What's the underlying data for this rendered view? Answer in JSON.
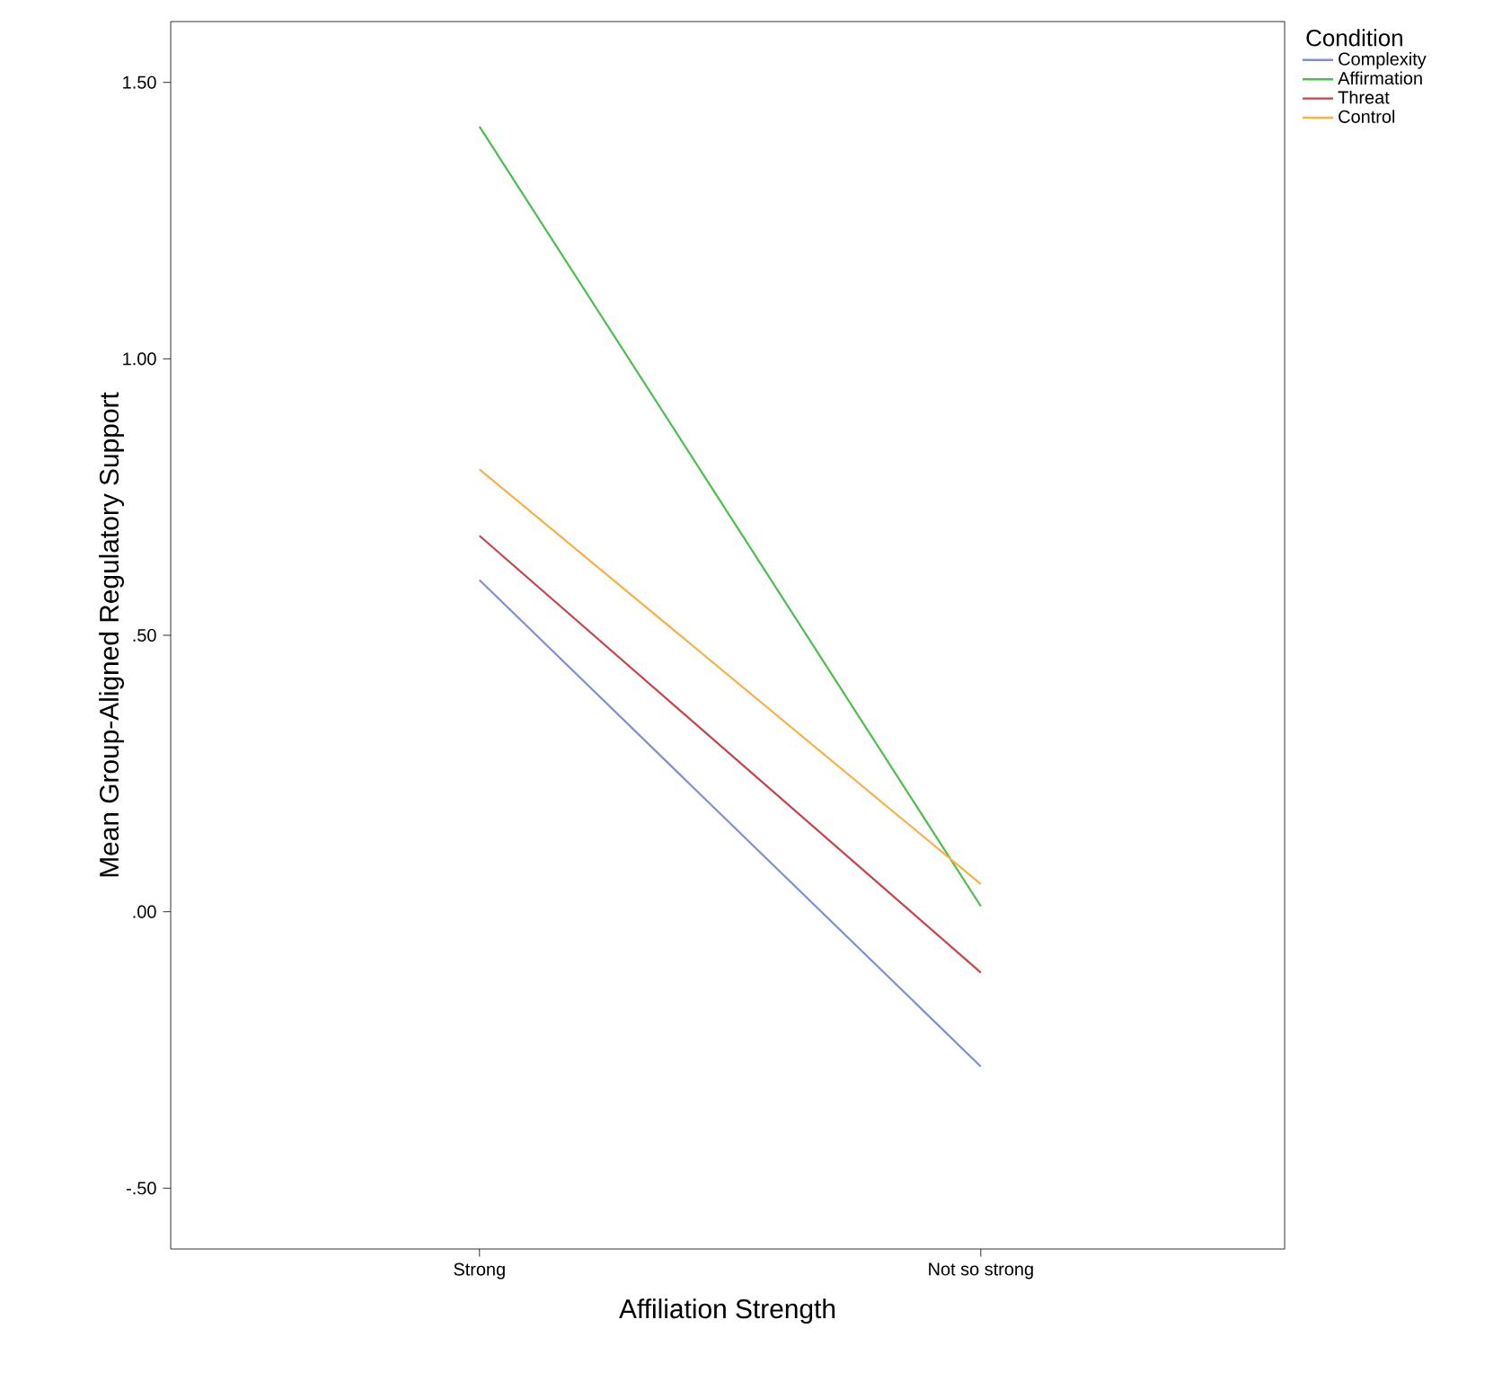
{
  "chart_data": {
    "type": "line",
    "xlabel": "Affiliation Strength",
    "ylabel": "Mean Group-Aligned Regulatory Support",
    "legend_title": "Condition",
    "legend": "right",
    "categories": [
      "Strong",
      "Not so strong"
    ],
    "ylim": [
      -0.61,
      1.61
    ],
    "yticks": [
      {
        "value": -0.5,
        "label": "-.50"
      },
      {
        "value": 0,
        "label": ".00"
      },
      {
        "value": 0.5,
        "label": ".50"
      },
      {
        "value": 1.0,
        "label": "1.00"
      },
      {
        "value": 1.5,
        "label": "1.50"
      }
    ],
    "series": [
      {
        "name": "Complexity",
        "color": "#7f8fd4",
        "values": [
          0.6,
          -0.28
        ]
      },
      {
        "name": "Affirmation",
        "color": "#4dbd4d",
        "values": [
          1.42,
          0.01
        ]
      },
      {
        "name": "Threat",
        "color": "#c4454a",
        "values": [
          0.68,
          -0.11
        ]
      },
      {
        "name": "Control",
        "color": "#f5b14c",
        "values": [
          0.8,
          0.05
        ]
      }
    ]
  }
}
